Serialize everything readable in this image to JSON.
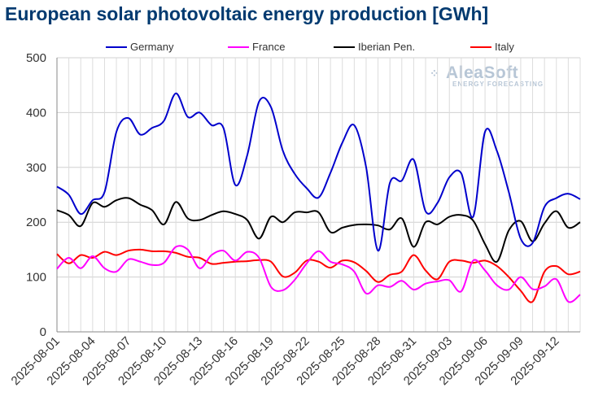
{
  "title": "European solar photovoltaic energy production [GWh]",
  "watermark": {
    "name": "AleaSoft",
    "tagline": "ENERGY FORECASTING"
  },
  "chart_data": {
    "type": "line",
    "title": "European solar photovoltaic energy production [GWh]",
    "xlabel": "",
    "ylabel": "",
    "ylim": [
      0,
      500
    ],
    "yticks": [
      0,
      100,
      200,
      300,
      400,
      500
    ],
    "grid": true,
    "legend_position": "top",
    "x": [
      "2025-08-01",
      "2025-08-02",
      "2025-08-03",
      "2025-08-04",
      "2025-08-05",
      "2025-08-06",
      "2025-08-07",
      "2025-08-08",
      "2025-08-09",
      "2025-08-10",
      "2025-08-11",
      "2025-08-12",
      "2025-08-13",
      "2025-08-14",
      "2025-08-15",
      "2025-08-16",
      "2025-08-17",
      "2025-08-18",
      "2025-08-19",
      "2025-08-20",
      "2025-08-21",
      "2025-08-22",
      "2025-08-23",
      "2025-08-24",
      "2025-08-25",
      "2025-08-26",
      "2025-08-27",
      "2025-08-28",
      "2025-08-29",
      "2025-08-30",
      "2025-08-31",
      "2025-09-01",
      "2025-09-02",
      "2025-09-03",
      "2025-09-04",
      "2025-09-05",
      "2025-09-06",
      "2025-09-07",
      "2025-09-08",
      "2025-09-09",
      "2025-09-10",
      "2025-09-11",
      "2025-09-12",
      "2025-09-13",
      "2025-09-14"
    ],
    "xtick_labels": [
      "2025-08-01",
      "2025-08-04",
      "2025-08-07",
      "2025-08-10",
      "2025-08-13",
      "2025-08-16",
      "2025-08-19",
      "2025-08-22",
      "2025-08-25",
      "2025-08-28",
      "2025-08-31",
      "2025-09-03",
      "2025-09-06",
      "2025-09-09",
      "2025-09-12"
    ],
    "series": [
      {
        "name": "Germany",
        "color": "#0000cc",
        "values": [
          265,
          250,
          215,
          240,
          255,
          365,
          390,
          360,
          372,
          385,
          435,
          392,
          400,
          377,
          372,
          268,
          322,
          420,
          410,
          330,
          288,
          262,
          245,
          290,
          345,
          377,
          300,
          148,
          272,
          276,
          314,
          220,
          235,
          282,
          289,
          210,
          365,
          330,
          255,
          170,
          162,
          228,
          244,
          252,
          242
        ]
      },
      {
        "name": "France",
        "color": "#ff00ff",
        "values": [
          115,
          135,
          116,
          138,
          116,
          110,
          132,
          128,
          122,
          126,
          155,
          150,
          116,
          140,
          148,
          130,
          146,
          135,
          82,
          76,
          95,
          125,
          147,
          128,
          123,
          110,
          70,
          85,
          82,
          93,
          77,
          88,
          92,
          94,
          74,
          130,
          112,
          85,
          77,
          100,
          78,
          83,
          96,
          55,
          68
        ]
      },
      {
        "name": "Iberian Pen.",
        "color": "#000000",
        "values": [
          222,
          213,
          193,
          235,
          228,
          240,
          244,
          232,
          222,
          196,
          237,
          207,
          204,
          213,
          220,
          215,
          204,
          170,
          210,
          200,
          218,
          218,
          218,
          182,
          190,
          195,
          196,
          194,
          187,
          207,
          155,
          200,
          196,
          210,
          213,
          203,
          160,
          128,
          185,
          202,
          165,
          198,
          220,
          190,
          200
        ]
      },
      {
        "name": "Italy",
        "color": "#ff0000",
        "values": [
          142,
          125,
          140,
          135,
          146,
          140,
          148,
          150,
          147,
          147,
          144,
          137,
          135,
          124,
          126,
          128,
          129,
          131,
          128,
          101,
          108,
          130,
          128,
          117,
          130,
          127,
          111,
          91,
          104,
          110,
          140,
          112,
          96,
          128,
          130,
          126,
          130,
          120,
          100,
          75,
          55,
          110,
          120,
          105,
          110
        ]
      }
    ]
  }
}
